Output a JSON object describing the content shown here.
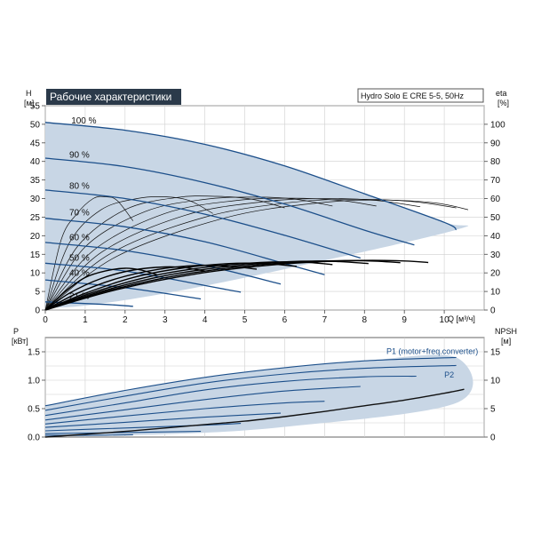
{
  "title": "Рабочие характеристики",
  "model": "Hydro Solo E CRE 5-5, 50Hz",
  "colors": {
    "curve": "#1c4f8a",
    "fill": "#c8d6e5",
    "title_bg": "#2b3a4a",
    "grid": "#cfcfcf"
  },
  "chart_data": [
    {
      "type": "line",
      "name": "head",
      "xlabel": "Q [м³/ч]",
      "ylabel": "H [м]",
      "y2label": "eta [%]",
      "xlim": [
        0,
        11
      ],
      "ylim": [
        0,
        55
      ],
      "y2lim": [
        0,
        110
      ],
      "x_ticks": [
        0,
        1,
        2,
        3,
        4,
        5,
        6,
        7,
        8,
        9,
        10
      ],
      "y_ticks": [
        0,
        5,
        10,
        15,
        20,
        25,
        30,
        35,
        40,
        45,
        50,
        55
      ],
      "y2_ticks": [
        0,
        10,
        20,
        30,
        40,
        50,
        60,
        70,
        80,
        90,
        100
      ],
      "speed_labels": [
        {
          "text": "100 %",
          "x": 0.65,
          "y": 50.2
        },
        {
          "text": "90 %",
          "x": 0.6,
          "y": 41.0
        },
        {
          "text": "80 %",
          "x": 0.6,
          "y": 32.6
        },
        {
          "text": "70 %",
          "x": 0.6,
          "y": 25.5
        },
        {
          "text": "60 %",
          "x": 0.6,
          "y": 18.8
        },
        {
          "text": "50 %",
          "x": 0.6,
          "y": 13.3
        },
        {
          "text": "40 %",
          "x": 0.6,
          "y": 9.2
        },
        {
          "text": "21 %",
          "x": 0.6,
          "y": 3.0
        }
      ],
      "series": [
        {
          "values": [
            [
              0,
              50.5
            ],
            [
              2,
              48.4
            ],
            [
              4,
              44.6
            ],
            [
              6,
              38.8
            ],
            [
              8,
              31.3
            ],
            [
              10,
              23.6
            ],
            [
              10.3,
              21.6
            ]
          ]
        },
        {
          "values": [
            [
              0,
              40.9
            ],
            [
              2,
              38.6
            ],
            [
              4,
              34.3
            ],
            [
              6,
              28.5
            ],
            [
              8,
              21.5
            ],
            [
              9.25,
              17.5
            ]
          ]
        },
        {
          "values": [
            [
              0,
              32.3
            ],
            [
              2,
              30.0
            ],
            [
              4,
              25.8
            ],
            [
              6,
              20.1
            ],
            [
              7.9,
              14.0
            ]
          ]
        },
        {
          "values": [
            [
              0,
              24.7
            ],
            [
              2,
              22.4
            ],
            [
              4,
              18.4
            ],
            [
              6,
              12.5
            ],
            [
              7.0,
              9.5
            ]
          ]
        },
        {
          "values": [
            [
              0,
              18.2
            ],
            [
              2,
              16.0
            ],
            [
              4,
              12.0
            ],
            [
              5.9,
              7.0
            ]
          ]
        },
        {
          "values": [
            [
              0,
              12.6
            ],
            [
              2,
              10.5
            ],
            [
              4,
              6.6
            ],
            [
              4.9,
              4.8
            ]
          ]
        },
        {
          "values": [
            [
              0,
              8.1
            ],
            [
              2,
              6.0
            ],
            [
              3.9,
              3.0
            ]
          ]
        },
        {
          "values": [
            [
              0,
              2.2
            ],
            [
              1.5,
              1.5
            ],
            [
              2.2,
              1.0
            ]
          ]
        }
      ],
      "envelope": [
        [
          0,
          50.5
        ],
        [
          2,
          48.4
        ],
        [
          4,
          44.6
        ],
        [
          6,
          38.8
        ],
        [
          8,
          31.3
        ],
        [
          10,
          23.6
        ],
        [
          10.3,
          21.6
        ],
        [
          6,
          11.0
        ],
        [
          3,
          4.5
        ],
        [
          1.0,
          1.2
        ],
        [
          0,
          0.6
        ]
      ],
      "efficiency_curves": [
        [
          [
            0,
            0
          ],
          [
            0.4,
            19
          ],
          [
            0.8,
            26
          ],
          [
            1.2,
            30
          ],
          [
            1.5,
            30.5
          ],
          [
            1.8,
            29.5
          ],
          [
            2.2,
            24
          ]
        ],
        [
          [
            0,
            0
          ],
          [
            0.6,
            18
          ],
          [
            1.4,
            27
          ],
          [
            2.3,
            30
          ],
          [
            3.0,
            30.5
          ],
          [
            3.6,
            29.5
          ],
          [
            4.2,
            26
          ]
        ],
        [
          [
            0,
            0
          ],
          [
            0.8,
            17
          ],
          [
            2.0,
            27
          ],
          [
            3.3,
            30.3
          ],
          [
            4.3,
            30.6
          ],
          [
            5.2,
            29.8
          ],
          [
            6.0,
            27.5
          ]
        ],
        [
          [
            0,
            0
          ],
          [
            1.0,
            17
          ],
          [
            2.5,
            26.5
          ],
          [
            4.0,
            29.8
          ],
          [
            5.3,
            30.4
          ],
          [
            6.3,
            29.8
          ],
          [
            7.2,
            28
          ]
        ],
        [
          [
            0,
            0
          ],
          [
            1.2,
            16
          ],
          [
            3.0,
            26
          ],
          [
            4.8,
            29.5
          ],
          [
            6.2,
            30.1
          ],
          [
            7.4,
            29.5
          ],
          [
            8.3,
            28
          ]
        ],
        [
          [
            0,
            0
          ],
          [
            1.4,
            15.5
          ],
          [
            3.5,
            25.5
          ],
          [
            5.5,
            29.2
          ],
          [
            7.0,
            30
          ],
          [
            8.3,
            29.5
          ],
          [
            9.4,
            27.8
          ]
        ],
        [
          [
            0,
            0
          ],
          [
            1.6,
            15
          ],
          [
            4.0,
            25
          ],
          [
            6.2,
            29
          ],
          [
            7.8,
            29.8
          ],
          [
            9.2,
            29.2
          ],
          [
            10.3,
            27.5
          ]
        ],
        [
          [
            0,
            0
          ],
          [
            1.8,
            14.5
          ],
          [
            4.5,
            24.8
          ],
          [
            6.8,
            28.8
          ],
          [
            8.5,
            29.6
          ],
          [
            9.8,
            28.8
          ],
          [
            10.6,
            27
          ]
        ]
      ],
      "eta_curves": [
        [
          [
            0,
            0
          ],
          [
            0.5,
            10
          ],
          [
            1.0,
            17.5
          ],
          [
            1.5,
            21
          ],
          [
            2.0,
            22.5
          ],
          [
            2.4,
            21.5
          ],
          [
            2.8,
            19
          ]
        ],
        [
          [
            0,
            0
          ],
          [
            0.6,
            9
          ],
          [
            1.4,
            17
          ],
          [
            2.2,
            21.5
          ],
          [
            3.0,
            23.2
          ],
          [
            3.5,
            22.8
          ],
          [
            4.0,
            21
          ]
        ],
        [
          [
            0,
            0
          ],
          [
            0.8,
            9
          ],
          [
            1.8,
            17
          ],
          [
            2.8,
            21.8
          ],
          [
            3.8,
            24
          ],
          [
            4.6,
            23.6
          ],
          [
            5.3,
            22
          ]
        ],
        [
          [
            0,
            0
          ],
          [
            1.0,
            9
          ],
          [
            2.2,
            17.5
          ],
          [
            3.4,
            22.5
          ],
          [
            4.6,
            25
          ],
          [
            5.5,
            25
          ],
          [
            6.3,
            23.5
          ]
        ],
        [
          [
            0,
            0
          ],
          [
            1.2,
            9.5
          ],
          [
            2.6,
            18
          ],
          [
            4.0,
            23
          ],
          [
            5.4,
            25.6
          ],
          [
            6.4,
            25.8
          ],
          [
            7.2,
            24.5
          ]
        ],
        [
          [
            0,
            0
          ],
          [
            1.4,
            10
          ],
          [
            3.0,
            18.5
          ],
          [
            4.6,
            23.5
          ],
          [
            6.1,
            26
          ],
          [
            7.2,
            26.2
          ],
          [
            8.1,
            25
          ]
        ],
        [
          [
            0,
            0
          ],
          [
            1.6,
            10.5
          ],
          [
            3.4,
            19
          ],
          [
            5.2,
            24
          ],
          [
            6.8,
            26.3
          ],
          [
            8.0,
            26.5
          ],
          [
            8.9,
            25.5
          ]
        ],
        [
          [
            0,
            0
          ],
          [
            1.8,
            11
          ],
          [
            3.8,
            19.5
          ],
          [
            5.8,
            24.5
          ],
          [
            7.5,
            26.5
          ],
          [
            8.8,
            26.6
          ],
          [
            9.6,
            25.6
          ]
        ]
      ]
    },
    {
      "type": "line",
      "name": "power",
      "ylabel": "P [кВт]",
      "y2label": "NPSH [м]",
      "xlim": [
        0,
        11
      ],
      "ylim": [
        0,
        1.75
      ],
      "y2lim": [
        0,
        17.5
      ],
      "y_ticks": [
        0.0,
        0.5,
        1.0,
        1.5
      ],
      "y2_ticks": [
        0,
        5,
        10,
        15
      ],
      "labels": [
        {
          "text": "P1 (motor+freq.converter)",
          "x": 8.55,
          "y": 1.46
        },
        {
          "text": "P2",
          "x": 10.0,
          "y": 1.05
        }
      ],
      "series": [
        {
          "values": [
            [
              0,
              0.55
            ],
            [
              2,
              0.82
            ],
            [
              4,
              1.05
            ],
            [
              6,
              1.22
            ],
            [
              8,
              1.34
            ],
            [
              10.3,
              1.4
            ]
          ]
        },
        {
          "values": [
            [
              0,
              0.47
            ],
            [
              2,
              0.72
            ],
            [
              4,
              0.95
            ],
            [
              6,
              1.11
            ],
            [
              8,
              1.21
            ],
            [
              10.3,
              1.26
            ]
          ]
        },
        {
          "values": [
            [
              0,
              0.38
            ],
            [
              2,
              0.6
            ],
            [
              4,
              0.83
            ],
            [
              6,
              0.98
            ],
            [
              8,
              1.06
            ],
            [
              9.3,
              1.07
            ]
          ]
        },
        {
          "values": [
            [
              0,
              0.3
            ],
            [
              2,
              0.48
            ],
            [
              4,
              0.66
            ],
            [
              6,
              0.81
            ],
            [
              7.9,
              0.89
            ]
          ]
        },
        {
          "values": [
            [
              0,
              0.23
            ],
            [
              2,
              0.37
            ],
            [
              4,
              0.5
            ],
            [
              6,
              0.6
            ],
            [
              7.0,
              0.63
            ]
          ]
        },
        {
          "values": [
            [
              0,
              0.17
            ],
            [
              2,
              0.26
            ],
            [
              4,
              0.35
            ],
            [
              5.9,
              0.42
            ]
          ]
        },
        {
          "values": [
            [
              0,
              0.11
            ],
            [
              2,
              0.16
            ],
            [
              4,
              0.21
            ],
            [
              4.9,
              0.24
            ]
          ]
        },
        {
          "values": [
            [
              0,
              0.06
            ],
            [
              2,
              0.08
            ],
            [
              3.9,
              0.1
            ]
          ]
        },
        {
          "values": [
            [
              0,
              0.03
            ],
            [
              1.1,
              0.03
            ],
            [
              2.2,
              0.04
            ]
          ]
        }
      ],
      "envelope": [
        [
          0,
          0.55
        ],
        [
          2,
          0.82
        ],
        [
          4,
          1.05
        ],
        [
          6,
          1.22
        ],
        [
          8,
          1.34
        ],
        [
          10.3,
          1.4
        ],
        [
          10.3,
          0.6
        ],
        [
          6,
          0.18
        ],
        [
          3,
          0.05
        ],
        [
          0,
          0.02
        ]
      ],
      "npsh_curve": [
        [
          0,
          0.0
        ],
        [
          1,
          0.05
        ],
        [
          2,
          0.1
        ],
        [
          3,
          0.16
        ],
        [
          4,
          0.22
        ],
        [
          5,
          0.28
        ],
        [
          6,
          0.36
        ],
        [
          7,
          0.45
        ],
        [
          8,
          0.55
        ],
        [
          9,
          0.65
        ],
        [
          10,
          0.77
        ],
        [
          10.5,
          0.84
        ]
      ]
    }
  ]
}
